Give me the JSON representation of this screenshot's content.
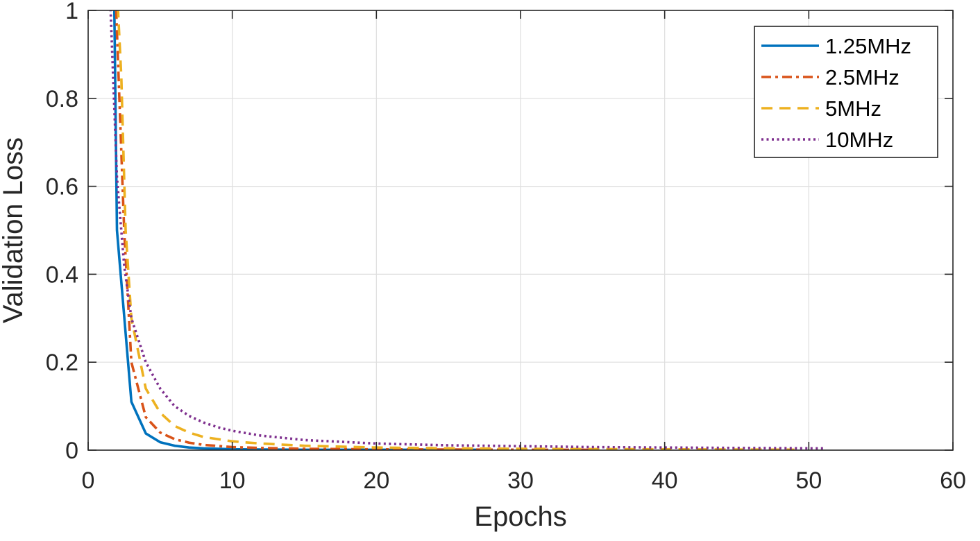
{
  "chart_data": {
    "type": "line",
    "title": "",
    "xlabel": "Epochs",
    "ylabel": "Validation Loss",
    "xlim": [
      0,
      60
    ],
    "ylim": [
      0,
      1
    ],
    "xticks": [
      0,
      10,
      20,
      30,
      40,
      50,
      60
    ],
    "yticks": [
      0,
      0.2,
      0.4,
      0.6,
      0.8,
      1
    ],
    "xtick_labels": [
      "0",
      "10",
      "20",
      "30",
      "40",
      "50",
      "60"
    ],
    "ytick_labels": [
      "0",
      "0.2",
      "0.4",
      "0.6",
      "0.8",
      "1"
    ],
    "grid": true,
    "legend_position": "top-right",
    "series": [
      {
        "name": "1.25MHz",
        "color": "#0072BD",
        "style": "solid",
        "x": [
          1.8,
          2,
          3,
          4,
          5,
          6,
          7,
          8,
          9,
          10,
          12,
          15,
          20,
          25,
          27
        ],
        "y": [
          1.05,
          0.5,
          0.11,
          0.038,
          0.018,
          0.01,
          0.006,
          0.004,
          0.003,
          0.002,
          0.0015,
          0.001,
          0.001,
          0.001,
          0.001
        ]
      },
      {
        "name": "2.5MHz",
        "color": "#D95319",
        "style": "dashdot",
        "x": [
          1.9,
          2,
          2.5,
          3,
          4,
          5,
          6,
          7,
          8,
          10,
          12,
          15,
          20,
          25,
          30,
          35
        ],
        "y": [
          1.05,
          0.95,
          0.5,
          0.2,
          0.075,
          0.04,
          0.025,
          0.017,
          0.012,
          0.007,
          0.005,
          0.003,
          0.002,
          0.0015,
          0.001,
          0.001
        ]
      },
      {
        "name": "5MHz",
        "color": "#EDB120",
        "style": "dashed",
        "x": [
          2,
          2.3,
          2.6,
          3,
          4,
          5,
          6,
          7,
          8,
          10,
          12,
          15,
          20,
          25,
          30,
          40,
          49
        ],
        "y": [
          1.05,
          0.85,
          0.5,
          0.3,
          0.14,
          0.085,
          0.055,
          0.04,
          0.03,
          0.02,
          0.015,
          0.01,
          0.006,
          0.004,
          0.003,
          0.002,
          0.001
        ]
      },
      {
        "name": "10MHz",
        "color": "#7E2F8E",
        "style": "dotted",
        "x": [
          1.5,
          2,
          2.5,
          3,
          4,
          5,
          6,
          7,
          8,
          9,
          10,
          12,
          15,
          20,
          25,
          30,
          35,
          40,
          45,
          51
        ],
        "y": [
          1.05,
          0.62,
          0.42,
          0.3,
          0.2,
          0.14,
          0.1,
          0.078,
          0.063,
          0.052,
          0.044,
          0.033,
          0.023,
          0.015,
          0.011,
          0.009,
          0.007,
          0.006,
          0.005,
          0.004
        ]
      }
    ]
  }
}
